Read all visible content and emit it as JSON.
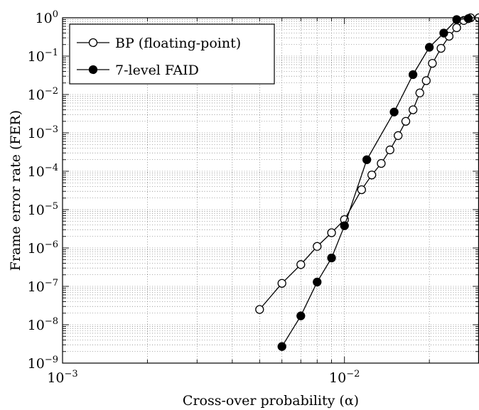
{
  "chart_data": {
    "type": "line",
    "xlabel": "Cross-over probability (α)",
    "ylabel": "Frame error rate (FER)",
    "x_scale": "log",
    "y_scale": "log",
    "xlim": [
      0.001,
      0.03
    ],
    "ylim": [
      1e-09,
      1
    ],
    "grid": true,
    "legend_position": "top-left",
    "x_ticks": [
      {
        "value": 0.001,
        "base": "10",
        "exp": "−3"
      },
      {
        "value": 0.01,
        "base": "10",
        "exp": "−2"
      }
    ],
    "y_ticks": [
      {
        "value": 1e-09,
        "base": "10",
        "exp": "−9"
      },
      {
        "value": 1e-08,
        "base": "10",
        "exp": "−8"
      },
      {
        "value": 1e-07,
        "base": "10",
        "exp": "−7"
      },
      {
        "value": 1e-06,
        "base": "10",
        "exp": "−6"
      },
      {
        "value": 1e-05,
        "base": "10",
        "exp": "−5"
      },
      {
        "value": 0.0001,
        "base": "10",
        "exp": "−4"
      },
      {
        "value": 0.001,
        "base": "10",
        "exp": "−3"
      },
      {
        "value": 0.01,
        "base": "10",
        "exp": "−2"
      },
      {
        "value": 0.1,
        "base": "10",
        "exp": "−1"
      },
      {
        "value": 1,
        "base": "10",
        "exp": "0"
      }
    ],
    "series": [
      {
        "name": "BP (floating-point)",
        "marker": "open-circle",
        "color": "#000000",
        "x": [
          0.005,
          0.006,
          0.007,
          0.008,
          0.009,
          0.01,
          0.0115,
          0.0125,
          0.0135,
          0.0145,
          0.0155,
          0.0165,
          0.0175,
          0.0185,
          0.0195,
          0.0205,
          0.022,
          0.0235,
          0.025,
          0.0265,
          0.028,
          0.03
        ],
        "y": [
          2.5e-08,
          1.2e-07,
          3.7e-07,
          1.1e-06,
          2.5e-06,
          5.5e-06,
          3.3e-05,
          8e-05,
          0.00016,
          0.00036,
          0.00085,
          0.002,
          0.004,
          0.011,
          0.023,
          0.065,
          0.16,
          0.33,
          0.55,
          0.85,
          1.0,
          1.0
        ]
      },
      {
        "name": "7-level FAID",
        "marker": "filled-circle",
        "color": "#000000",
        "x": [
          0.006,
          0.007,
          0.008,
          0.009,
          0.01,
          0.012,
          0.015,
          0.0175,
          0.02,
          0.0225,
          0.025,
          0.0275
        ],
        "y": [
          2.7e-09,
          1.7e-08,
          1.3e-07,
          5.5e-07,
          3.8e-06,
          0.0002,
          0.0035,
          0.033,
          0.17,
          0.4,
          0.9,
          0.95
        ]
      }
    ]
  }
}
